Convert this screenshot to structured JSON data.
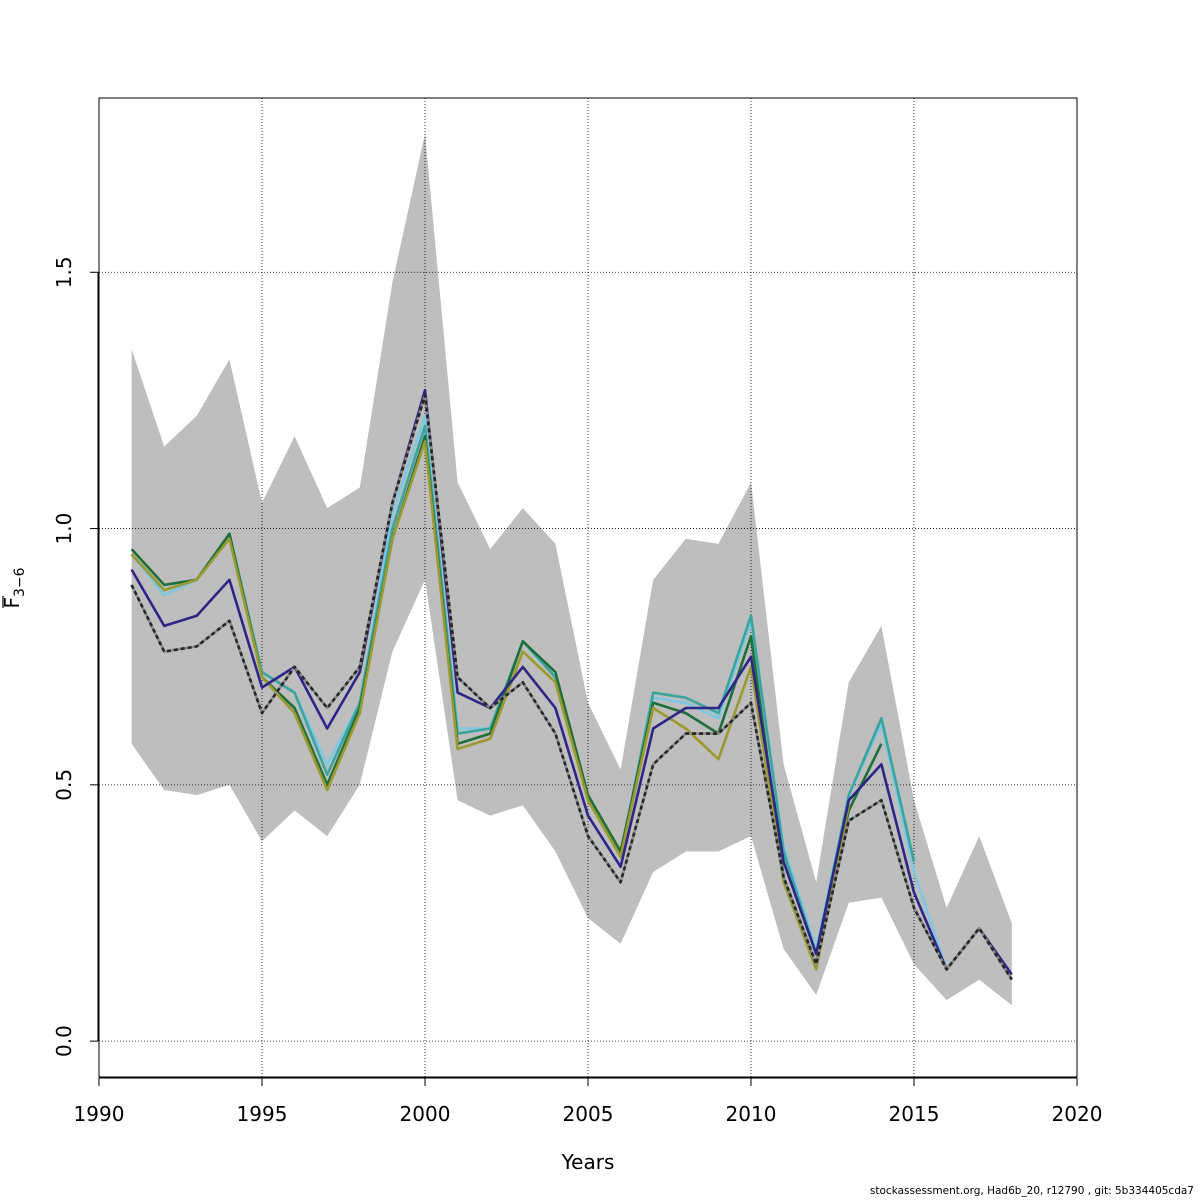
{
  "chart_data": {
    "type": "line",
    "xlabel": "Years",
    "ylabel": "F",
    "ylabel_subscript": "3−6",
    "xlim": [
      1990,
      2020
    ],
    "ylim": [
      -0.07,
      1.84
    ],
    "x_ticks": [
      1990,
      1995,
      2000,
      2005,
      2010,
      2015,
      2020
    ],
    "y_ticks": [
      0.0,
      0.5,
      1.0,
      1.5
    ],
    "x_tick_labels": [
      "1990",
      "1995",
      "2000",
      "2005",
      "2010",
      "2015",
      "2020"
    ],
    "y_tick_labels": [
      "0.0",
      "0.5",
      "1.0",
      "1.5"
    ],
    "grid": true,
    "band": {
      "color": "#bebebe",
      "x": [
        1991,
        1992,
        1993,
        1994,
        1995,
        1996,
        1997,
        1998,
        1999,
        2000,
        2001,
        2002,
        2003,
        2004,
        2005,
        2006,
        2007,
        2008,
        2009,
        2010,
        2011,
        2012,
        2013,
        2014,
        2015,
        2016,
        2017,
        2018
      ],
      "upper": [
        1.35,
        1.16,
        1.22,
        1.33,
        1.05,
        1.18,
        1.04,
        1.08,
        1.48,
        1.77,
        1.09,
        0.96,
        1.04,
        0.97,
        0.66,
        0.53,
        0.9,
        0.98,
        0.97,
        1.09,
        0.54,
        0.31,
        0.7,
        0.81,
        0.47,
        0.26,
        0.4,
        0.23
      ],
      "lower": [
        0.58,
        0.49,
        0.48,
        0.5,
        0.39,
        0.45,
        0.4,
        0.5,
        0.76,
        0.9,
        0.47,
        0.44,
        0.46,
        0.37,
        0.24,
        0.19,
        0.33,
        0.37,
        0.37,
        0.4,
        0.18,
        0.09,
        0.27,
        0.28,
        0.15,
        0.08,
        0.12,
        0.07
      ]
    },
    "series": [
      {
        "color": "#7ec8e3",
        "dashed": false,
        "x": [
          1991,
          1992,
          1993,
          1994,
          1995,
          1996,
          1997,
          1998,
          1999,
          2000,
          2001,
          2002,
          2003,
          2004,
          2005,
          2006,
          2007,
          2008,
          2009,
          2010,
          2011,
          2012,
          2013,
          2014,
          2015,
          2016
        ],
        "values": [
          0.95,
          0.87,
          0.9,
          0.99,
          0.72,
          0.68,
          0.54,
          0.66,
          1.03,
          1.22,
          0.61,
          0.61,
          0.78,
          0.71,
          0.47,
          0.37,
          0.67,
          0.66,
          0.63,
          0.82,
          0.38,
          0.18,
          0.48,
          0.62,
          0.33,
          0.14
        ]
      },
      {
        "color": "#3aa59f",
        "dashed": false,
        "x": [
          1991,
          1992,
          1993,
          1994,
          1995,
          1996,
          1997,
          1998,
          1999,
          2000,
          2001,
          2002,
          2003,
          2004,
          2005,
          2006,
          2007,
          2008,
          2009,
          2010,
          2011,
          2012,
          2013,
          2014,
          2015
        ],
        "values": [
          0.95,
          0.88,
          0.9,
          0.99,
          0.72,
          0.68,
          0.52,
          0.66,
          1.0,
          1.2,
          0.6,
          0.61,
          0.78,
          0.71,
          0.47,
          0.36,
          0.68,
          0.67,
          0.64,
          0.83,
          0.37,
          0.17,
          0.48,
          0.63,
          0.35
        ]
      },
      {
        "color": "#1f6f3a",
        "dashed": false,
        "x": [
          1991,
          1992,
          1993,
          1994,
          1995,
          1996,
          1997,
          1998,
          1999,
          2000,
          2001,
          2002,
          2003,
          2004,
          2005,
          2006,
          2007,
          2008,
          2009,
          2010,
          2011,
          2012,
          2013,
          2014
        ],
        "values": [
          0.96,
          0.89,
          0.9,
          0.99,
          0.71,
          0.65,
          0.5,
          0.65,
          0.98,
          1.18,
          0.58,
          0.6,
          0.78,
          0.72,
          0.48,
          0.37,
          0.66,
          0.64,
          0.6,
          0.79,
          0.32,
          0.15,
          0.45,
          0.58
        ]
      },
      {
        "color": "#9c9a2e",
        "dashed": false,
        "x": [
          1991,
          1992,
          1993,
          1994,
          1995,
          1996,
          1997,
          1998,
          1999,
          2000,
          2001,
          2002,
          2003,
          2004,
          2005,
          2006,
          2007,
          2008,
          2009,
          2010,
          2011,
          2012,
          2013
        ],
        "values": [
          0.95,
          0.88,
          0.9,
          0.98,
          0.71,
          0.64,
          0.49,
          0.64,
          0.98,
          1.17,
          0.57,
          0.59,
          0.76,
          0.7,
          0.47,
          0.36,
          0.65,
          0.61,
          0.55,
          0.73,
          0.31,
          0.14,
          0.46
        ]
      },
      {
        "color": "#2e2587",
        "dashed": false,
        "x": [
          1991,
          1992,
          1993,
          1994,
          1995,
          1996,
          1997,
          1998,
          1999,
          2000,
          2001,
          2002,
          2003,
          2004,
          2005,
          2006,
          2007,
          2008,
          2009,
          2010,
          2011,
          2012,
          2013,
          2014,
          2015,
          2016,
          2017,
          2018
        ],
        "values": [
          0.92,
          0.81,
          0.83,
          0.9,
          0.69,
          0.73,
          0.61,
          0.72,
          1.05,
          1.27,
          0.68,
          0.65,
          0.73,
          0.65,
          0.44,
          0.34,
          0.61,
          0.65,
          0.65,
          0.75,
          0.35,
          0.17,
          0.47,
          0.54,
          0.29,
          0.14,
          0.22,
          0.13
        ]
      },
      {
        "color": "#262626",
        "dashed": true,
        "x": [
          1991,
          1992,
          1993,
          1994,
          1995,
          1996,
          1997,
          1998,
          1999,
          2000,
          2001,
          2002,
          2003,
          2004,
          2005,
          2006,
          2007,
          2008,
          2009,
          2010,
          2011,
          2012,
          2013,
          2014,
          2015,
          2016,
          2017,
          2018
        ],
        "values": [
          0.89,
          0.76,
          0.77,
          0.82,
          0.64,
          0.73,
          0.65,
          0.73,
          1.05,
          1.26,
          0.71,
          0.65,
          0.7,
          0.6,
          0.4,
          0.31,
          0.54,
          0.6,
          0.6,
          0.66,
          0.32,
          0.15,
          0.43,
          0.47,
          0.26,
          0.14,
          0.22,
          0.12
        ]
      }
    ]
  },
  "footer": "stockassessment.org, Had6b_20, r12790 , git: 5b334405cda7"
}
